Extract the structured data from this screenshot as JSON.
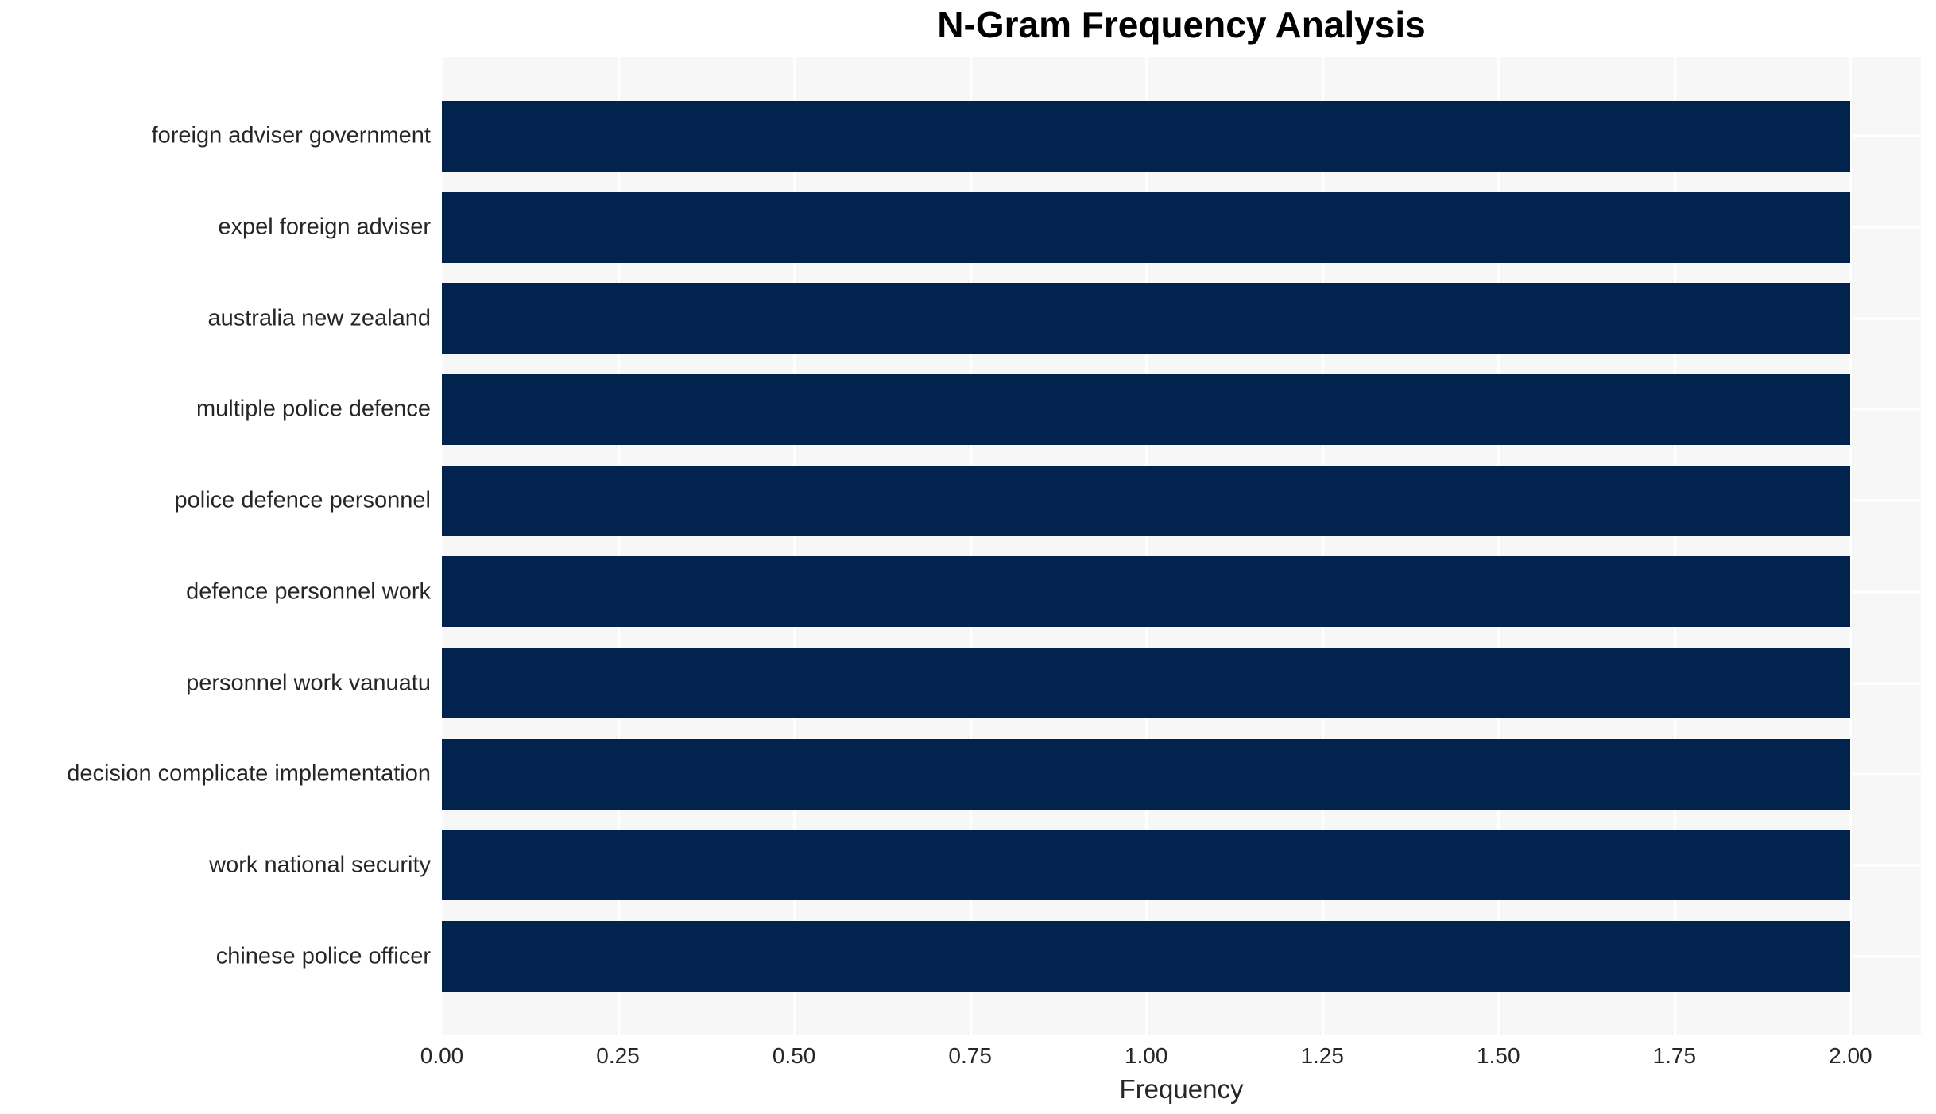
{
  "chart_data": {
    "type": "bar",
    "orientation": "horizontal",
    "title": "N-Gram Frequency Analysis",
    "xlabel": "Frequency",
    "ylabel": "",
    "categories": [
      "foreign adviser government",
      "expel foreign adviser",
      "australia new zealand",
      "multiple police defence",
      "police defence personnel",
      "defence personnel work",
      "personnel work vanuatu",
      "decision complicate implementation",
      "work national security",
      "chinese police officer"
    ],
    "values": [
      2,
      2,
      2,
      2,
      2,
      2,
      2,
      2,
      2,
      2
    ],
    "xlim": [
      0,
      2.1
    ],
    "xticks": [
      0,
      0.25,
      0.5,
      0.75,
      1,
      1.25,
      1.5,
      1.75,
      2
    ],
    "xtick_labels": [
      "0.00",
      "0.25",
      "0.50",
      "0.75",
      "1.00",
      "1.25",
      "1.50",
      "1.75",
      "2.00"
    ],
    "grid": true,
    "legend_position": "none",
    "colors": {
      "bar": "#02234e",
      "plot_bg": "#f7f7f7",
      "gridline": "#ffffff",
      "tick_text": "#262626",
      "title_text": "#000000",
      "canvas_bg": "#ffffff"
    }
  }
}
